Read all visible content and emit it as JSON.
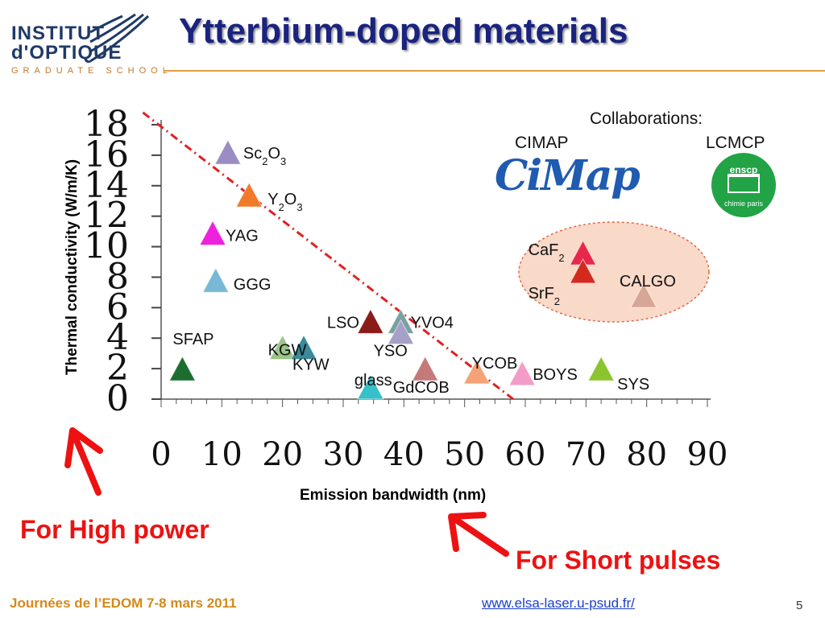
{
  "header": {
    "logo_line1": "INSTITUT",
    "logo_line2": "d'OPTIQUE",
    "logo_sub": "GRADUATE SCHOOL",
    "title": "Ytterbium-doped materials"
  },
  "collaborations": {
    "title": "Collaborations:",
    "cimap_label": "CIMAP",
    "lcmcp_label": "LCMCP",
    "cimap_logo_text": "CiMap",
    "enscp_logo_top": "enscp",
    "enscp_logo_bottom": "chimie paris"
  },
  "callouts": {
    "high_power": "For High power",
    "short_pulses": "For Short pulses"
  },
  "footer": {
    "left_prefix": "Journées de",
    "left_rest": " l’EDOM 7-8 mars 2011",
    "link": "www.elsa-laser.u-psud.fr/",
    "page_number": "5"
  },
  "colors": {
    "title": "#1a237e",
    "callout": "#ee1111",
    "trend_line": "#e02020",
    "highlight_fill": "#f9d9c8",
    "footer": "#d48a1a"
  },
  "chart_data": {
    "type": "scatter",
    "xlabel": "Emission bandwidth (nm)",
    "ylabel": "Thermal conductivity (W/m/K)",
    "xlim": [
      0,
      90
    ],
    "ylim": [
      0,
      18
    ],
    "xticks": [
      0,
      10,
      20,
      30,
      40,
      50,
      60,
      70,
      80,
      90
    ],
    "yticks": [
      0,
      2,
      4,
      6,
      8,
      10,
      12,
      14,
      16,
      18
    ],
    "marker": "triangle",
    "trend_line": {
      "from": [
        -3,
        18.8
      ],
      "to": [
        58,
        0
      ]
    },
    "highlight_group": [
      "CaF2",
      "SrF2",
      "CALGO"
    ],
    "points": [
      {
        "label": "Sc2O3",
        "x": 11,
        "y": 16.2,
        "color": "#9b8cc4"
      },
      {
        "label": "Y2O3",
        "x": 14.5,
        "y": 13.4,
        "color": "#f07a2a"
      },
      {
        "label": "YAG",
        "x": 8.5,
        "y": 10.9,
        "color": "#ee22dd"
      },
      {
        "label": "GGG",
        "x": 9,
        "y": 7.8,
        "color": "#79b8d6"
      },
      {
        "label": "SFAP",
        "x": 3.5,
        "y": 2,
        "color": "#1d6e2e"
      },
      {
        "label": "KGW",
        "x": 20,
        "y": 3.4,
        "color": "#9bc48a"
      },
      {
        "label": "KYW",
        "x": 23.5,
        "y": 3.4,
        "color": "#3a8a9a"
      },
      {
        "label": "LSO",
        "x": 34.5,
        "y": 5.1,
        "color": "#8b1a1a"
      },
      {
        "label": "YVO4",
        "x": 39.5,
        "y": 5.1,
        "color": "#7aa0a0"
      },
      {
        "label": "YSO",
        "x": 39.5,
        "y": 4.4,
        "color": "#a6a0c8"
      },
      {
        "label": "glass",
        "x": 34.5,
        "y": 0.8,
        "color": "#36c0c8"
      },
      {
        "label": "GdCOB",
        "x": 43.5,
        "y": 2,
        "color": "#c47a7a"
      },
      {
        "label": "YCOB",
        "x": 52,
        "y": 1.8,
        "color": "#f4a276"
      },
      {
        "label": "BOYS",
        "x": 59.5,
        "y": 1.7,
        "color": "#f49cc8"
      },
      {
        "label": "SYS",
        "x": 72.5,
        "y": 2,
        "color": "#8cc42e"
      },
      {
        "label": "CaF2",
        "x": 69.5,
        "y": 9.6,
        "color": "#e8284a"
      },
      {
        "label": "SrF2",
        "x": 69.5,
        "y": 8.4,
        "color": "#d42a1e"
      },
      {
        "label": "CALGO",
        "x": 79.5,
        "y": 6.8,
        "color": "#d8a696"
      }
    ]
  }
}
